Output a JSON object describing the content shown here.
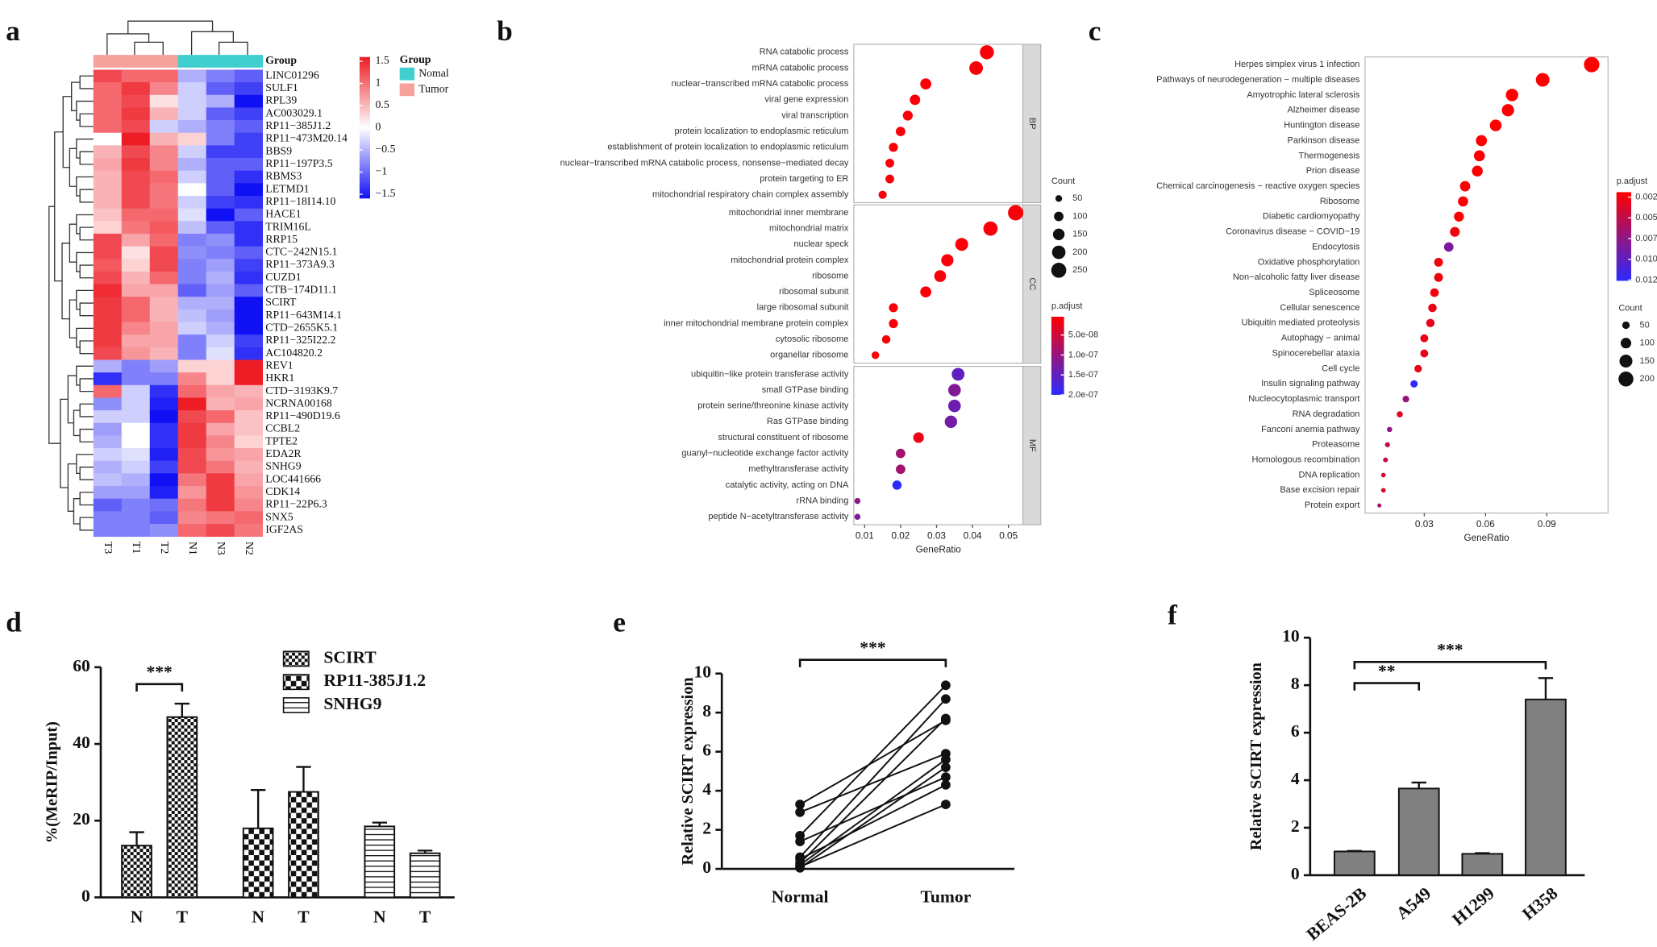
{
  "chart_data": [
    {
      "panel": "a",
      "type": "heatmap",
      "rows": [
        "LINC01296",
        "SULF1",
        "RPL39",
        "AC003029.1",
        "RP11−385J1.2",
        "RP11−473M20.14",
        "BBS9",
        "RP11−197P3.5",
        "RBMS3",
        "LETMD1",
        "RP11−18I14.10",
        "HACE1",
        "TRIM16L",
        "RRP15",
        "CTC−242N15.1",
        "RP11−373A9.3",
        "CUZD1",
        "CTB−174D11.1",
        "SCIRT",
        "RP11−643M14.1",
        "CTD−2655K5.1",
        "RP11−325I22.2",
        "AC104820.2",
        "REV1",
        "HKR1",
        "CTD−3193K9.7",
        "NCRNA00168",
        "RP11−490D19.6",
        "CCBL2",
        "TPTE2",
        "EDA2R",
        "SNHG9",
        "LOC441666",
        "CDK14",
        "RP11−22P6.3",
        "SNX5",
        "IGF2AS"
      ],
      "columns": [
        "T3",
        "T1",
        "T2",
        "N1",
        "N3",
        "N2"
      ],
      "values": [
        [
          1.2,
          1.0,
          1.0,
          -0.5,
          -0.8,
          -1.0
        ],
        [
          1.0,
          1.3,
          0.8,
          -0.3,
          -1.0,
          -1.2
        ],
        [
          1.0,
          1.2,
          0.2,
          -0.3,
          -0.5,
          -1.5
        ],
        [
          1.0,
          1.3,
          0.5,
          -0.3,
          -1.0,
          -1.2
        ],
        [
          1.0,
          1.2,
          -0.3,
          -0.5,
          -0.8,
          -1.0
        ],
        [
          0.0,
          1.5,
          0.5,
          0.3,
          -0.8,
          -1.2
        ],
        [
          0.5,
          1.2,
          0.8,
          -0.3,
          -1.2,
          -1.2
        ],
        [
          0.6,
          1.3,
          0.8,
          -0.5,
          -1.0,
          -1.0
        ],
        [
          0.5,
          1.2,
          1.0,
          -0.3,
          -1.0,
          -1.3
        ],
        [
          0.5,
          1.2,
          0.9,
          0.0,
          -1.0,
          -1.5
        ],
        [
          0.5,
          1.2,
          0.9,
          -0.3,
          -1.2,
          -1.3
        ],
        [
          0.4,
          1.0,
          1.0,
          -0.2,
          -1.5,
          -1.0
        ],
        [
          0.3,
          0.9,
          1.1,
          -0.4,
          -1.0,
          -1.3
        ],
        [
          1.2,
          0.6,
          1.0,
          -0.8,
          -0.7,
          -1.3
        ],
        [
          1.2,
          0.2,
          1.2,
          -0.7,
          -0.8,
          -1.0
        ],
        [
          1.1,
          0.3,
          1.2,
          -0.8,
          -0.6,
          -1.2
        ],
        [
          1.2,
          0.5,
          1.0,
          -0.8,
          -0.5,
          -1.3
        ],
        [
          1.4,
          0.6,
          0.6,
          -1.0,
          -0.6,
          -1.0
        ],
        [
          1.3,
          1.0,
          0.5,
          -0.5,
          -0.5,
          -1.5
        ],
        [
          1.3,
          1.0,
          0.5,
          -0.4,
          -0.6,
          -1.5
        ],
        [
          1.3,
          0.8,
          0.6,
          -0.3,
          -0.5,
          -1.5
        ],
        [
          1.3,
          0.6,
          0.6,
          -0.8,
          -0.3,
          -1.2
        ],
        [
          1.2,
          0.7,
          0.5,
          -0.8,
          -0.2,
          -1.3
        ],
        [
          -0.5,
          -0.8,
          -0.6,
          0.3,
          0.3,
          1.5
        ],
        [
          -1.3,
          -0.8,
          -0.8,
          0.8,
          0.3,
          1.5
        ],
        [
          1.0,
          -0.3,
          -1.3,
          1.0,
          0.6,
          0.5
        ],
        [
          -0.7,
          -0.3,
          -1.4,
          1.5,
          0.5,
          0.6
        ],
        [
          -0.3,
          -0.3,
          -1.5,
          1.2,
          1.0,
          0.4
        ],
        [
          -0.6,
          0.0,
          -1.3,
          1.3,
          0.6,
          0.4
        ],
        [
          -0.5,
          0.0,
          -1.3,
          1.3,
          0.8,
          0.3
        ],
        [
          -0.3,
          -0.2,
          -1.4,
          1.2,
          0.7,
          0.6
        ],
        [
          -0.5,
          -0.3,
          -1.2,
          1.2,
          0.9,
          0.5
        ],
        [
          -0.4,
          -0.5,
          -1.5,
          0.9,
          1.3,
          0.6
        ],
        [
          -0.6,
          -0.6,
          -1.4,
          0.7,
          1.3,
          0.7
        ],
        [
          -1.0,
          -0.8,
          -0.9,
          0.9,
          1.3,
          0.8
        ],
        [
          -0.8,
          -0.8,
          -1.0,
          0.8,
          0.9,
          1.0
        ],
        [
          -0.8,
          -0.8,
          -0.7,
          1.0,
          1.2,
          0.9
        ]
      ],
      "clim": [
        -1.5,
        1.5
      ],
      "colorbar_ticks": [
        1.5,
        1,
        0.5,
        0,
        {
          "value": -0.5,
          "label": "−0.5"
        },
        {
          "value": -1,
          "label": "−1"
        },
        {
          "value": -1.5,
          "label": "−1.5"
        }
      ],
      "colors": {
        "low": "#1010f5",
        "mid": "#ffffff",
        "high": "#ee1c25"
      },
      "group_title": "Group",
      "groups": [
        {
          "name": "Nomal",
          "color": "#3fcfcf"
        },
        {
          "name": "Tumor",
          "color": "#f5a29c"
        }
      ],
      "column_groups": [
        "Tumor",
        "Tumor",
        "Tumor",
        "Nomal",
        "Nomal",
        "Nomal"
      ]
    },
    {
      "panel": "b",
      "type": "dot",
      "facets": [
        {
          "name": "BP",
          "terms": [
            "RNA catabolic process",
            "mRNA catabolic process",
            "nuclear−transcribed mRNA catabolic process",
            "viral gene expression",
            "viral transcription",
            "protein localization to endoplasmic reticulum",
            "establishment of protein localization to endoplasmic reticulum",
            "nuclear−transcribed mRNA catabolic process, nonsense−mediated decay",
            "protein targeting to ER",
            "mitochondrial respiratory chain complex assembly"
          ],
          "values": [
            0.044,
            0.041,
            0.027,
            0.024,
            0.022,
            0.02,
            0.018,
            0.017,
            0.017,
            0.015
          ],
          "counts": [
            220,
            205,
            135,
            120,
            110,
            100,
            90,
            85,
            85,
            75
          ],
          "p_adjust": [
            1e-08,
            1e-08,
            1e-08,
            1e-08,
            1e-08,
            1e-08,
            1e-08,
            1e-08,
            1e-08,
            1e-08
          ]
        },
        {
          "name": "CC",
          "terms": [
            "mitochondrial inner membrane",
            "mitochondrial matrix",
            "nuclear speck",
            "mitochondrial protein complex",
            "ribosome",
            "ribosomal subunit",
            "large ribosomal subunit",
            "inner mitochondrial membrane protein complex",
            "cytosolic ribosome",
            "organellar ribosome"
          ],
          "values": [
            0.052,
            0.045,
            0.037,
            0.033,
            0.031,
            0.027,
            0.018,
            0.018,
            0.016,
            0.013
          ],
          "counts": [
            260,
            225,
            185,
            165,
            155,
            135,
            90,
            90,
            80,
            65
          ],
          "p_adjust": [
            1e-08,
            1e-08,
            1e-08,
            1e-08,
            1e-08,
            1e-08,
            1e-08,
            1e-08,
            1e-08,
            1e-08
          ]
        },
        {
          "name": "MF",
          "terms": [
            "ubiquitin−like protein transferase activity",
            "small GTPase binding",
            "protein serine/threonine kinase activity",
            "Ras GTPase binding",
            "structural constituent of ribosome",
            "guanyl−nucleotide exchange factor activity",
            "methyltransferase activity",
            "catalytic activity, acting on DNA",
            "rRNA binding",
            "peptide N−acetyltransferase activity"
          ],
          "values": [
            0.036,
            0.035,
            0.035,
            0.034,
            0.025,
            0.02,
            0.02,
            0.019,
            0.008,
            0.008
          ],
          "counts": [
            180,
            175,
            175,
            170,
            125,
            100,
            100,
            95,
            40,
            40
          ],
          "p_adjust": [
            1.5e-07,
            1.2e-07,
            1.4e-07,
            1.3e-07,
            2e-08,
            9e-08,
            9e-08,
            2e-07,
            1.1e-07,
            1.2e-07
          ]
        }
      ],
      "xlim": [
        0.007,
        0.054
      ],
      "xticks": [
        0.01,
        0.02,
        0.03,
        0.04,
        0.05
      ],
      "xlabel": "GeneRatio",
      "size_title": "Count",
      "size_ticks": [
        50,
        100,
        150,
        200,
        250
      ],
      "color_title": "p.adjust",
      "color_lim": [
        4e-09,
        2e-07
      ],
      "color_ticks": [
        {
          "value": 5e-08,
          "label": "5.0e-08"
        },
        {
          "value": 1e-07,
          "label": "1.0e-07"
        },
        {
          "value": 1.5e-07,
          "label": "1.5e-07"
        },
        {
          "value": 2e-07,
          "label": "2.0e-07"
        }
      ],
      "colors": {
        "low": "#ff0000",
        "high": "#2a2aff"
      }
    },
    {
      "panel": "c",
      "type": "dot",
      "facets": [
        {
          "terms": [
            "Herpes simplex virus 1 infection",
            "Pathways of neurodegeneration − multiple diseases",
            "Amyotrophic lateral sclerosis",
            "Alzheimer disease",
            "Huntington disease",
            "Parkinson disease",
            "Thermogenesis",
            "Prion disease",
            "Chemical carcinogenesis − reactive oxygen species",
            "Ribosome",
            "Diabetic cardiomyopathy",
            "Coronavirus disease − COVID−19",
            "Endocytosis",
            "Oxidative phosphorylation",
            "Non−alcoholic fatty liver disease",
            "Spliceosome",
            "Cellular senescence",
            "Ubiquitin mediated proteolysis",
            "Autophagy − animal",
            "Spinocerebellar ataxia",
            "Cell cycle",
            "Insulin signaling pathway",
            "Nucleocytoplasmic transport",
            "RNA degradation",
            "Fanconi anemia pathway",
            "Proteasome",
            "Homologous recombination",
            "DNA replication",
            "Base excision repair",
            "Protein export"
          ],
          "values": [
            0.112,
            0.088,
            0.073,
            0.071,
            0.065,
            0.058,
            0.057,
            0.056,
            0.05,
            0.049,
            0.047,
            0.045,
            0.042,
            0.037,
            0.037,
            0.035,
            0.034,
            0.033,
            0.03,
            0.03,
            0.027,
            0.025,
            0.021,
            0.018,
            0.013,
            0.012,
            0.011,
            0.01,
            0.01,
            0.008
          ],
          "counts": [
            213,
            167,
            139,
            135,
            124,
            110,
            108,
            106,
            95,
            93,
            89,
            86,
            80,
            70,
            70,
            67,
            65,
            63,
            57,
            57,
            51,
            48,
            40,
            34,
            25,
            23,
            21,
            19,
            19,
            15
          ],
          "p_adjust": [
            0.002,
            0.002,
            0.002,
            0.002,
            0.002,
            0.002,
            0.002,
            0.002,
            0.002,
            0.002,
            0.002,
            0.0025,
            0.0085,
            0.0025,
            0.0025,
            0.0025,
            0.003,
            0.003,
            0.003,
            0.003,
            0.003,
            0.0125,
            0.007,
            0.0035,
            0.0075,
            0.005,
            0.0045,
            0.004,
            0.004,
            0.006
          ]
        }
      ],
      "xlim": [
        0.001,
        0.12
      ],
      "xticks": [
        0.03,
        0.06,
        0.09
      ],
      "xlabel": "GeneRatio",
      "size_title": "Count",
      "size_ticks": [
        50,
        100,
        150,
        200
      ],
      "color_title": "p.adjust",
      "color_lim": [
        0.0019,
        0.0126
      ],
      "color_ticks": [
        {
          "value": 0.0025,
          "label": "0.0025"
        },
        {
          "value": 0.005,
          "label": "0.0050"
        },
        {
          "value": 0.0075,
          "label": "0.0075"
        },
        {
          "value": 0.01,
          "label": "0.0100"
        },
        {
          "value": 0.0125,
          "label": "0.0125"
        }
      ],
      "colors": {
        "low": "#ff0000",
        "high": "#2a2aff"
      }
    },
    {
      "panel": "d",
      "type": "grouped_bar",
      "categories": [
        "N",
        "T"
      ],
      "series": [
        {
          "name": "SCIRT",
          "values": [
            13.5,
            47
          ],
          "errors": [
            3.5,
            3.5
          ],
          "pattern": "checker-small"
        },
        {
          "name": "RP11-385J1.2",
          "values": [
            18,
            27.5
          ],
          "errors": [
            10,
            6.5
          ],
          "pattern": "checker-large"
        },
        {
          "name": "SNHG9",
          "values": [
            18.5,
            11.5
          ],
          "errors": [
            1,
            0.7
          ],
          "pattern": "horizontal"
        }
      ],
      "ylim": [
        0,
        60
      ],
      "yticks": [
        0,
        20,
        40,
        60
      ],
      "ylabel": "%(MeRIP/Input)",
      "annotation": "***"
    },
    {
      "panel": "e",
      "type": "paired",
      "categories": [
        "Normal",
        "Tumor"
      ],
      "series": [
        {
          "values": [
            3.3,
            7.6
          ]
        },
        {
          "values": [
            2.9,
            5.9
          ]
        },
        {
          "values": [
            1.7,
            9.4
          ]
        },
        {
          "values": [
            1.4,
            4.7
          ]
        },
        {
          "values": [
            0.6,
            8.7
          ]
        },
        {
          "values": [
            0.5,
            4.3
          ]
        },
        {
          "values": [
            0.3,
            7.7
          ]
        },
        {
          "values": [
            0.2,
            5.6
          ]
        },
        {
          "values": [
            0.1,
            3.3
          ]
        },
        {
          "values": [
            0.05,
            5.2
          ]
        }
      ],
      "ylim": [
        0,
        10
      ],
      "yticks": [
        0,
        2,
        4,
        6,
        8,
        10
      ],
      "ylabel": "Relative SCIRT expression",
      "annotation": "***"
    },
    {
      "panel": "f",
      "type": "bar",
      "categories": [
        "BEAS-2B",
        "A549",
        "H1299",
        "H358"
      ],
      "values": [
        1.0,
        3.65,
        0.9,
        7.4
      ],
      "errors": [
        0.02,
        0.25,
        0.03,
        0.9
      ],
      "color": "#808080",
      "ylim": [
        0,
        10
      ],
      "yticks": [
        0,
        2,
        4,
        6,
        8,
        10
      ],
      "ylabel": "Relative SCIRT expression",
      "annotations": [
        "**",
        "***"
      ]
    }
  ]
}
